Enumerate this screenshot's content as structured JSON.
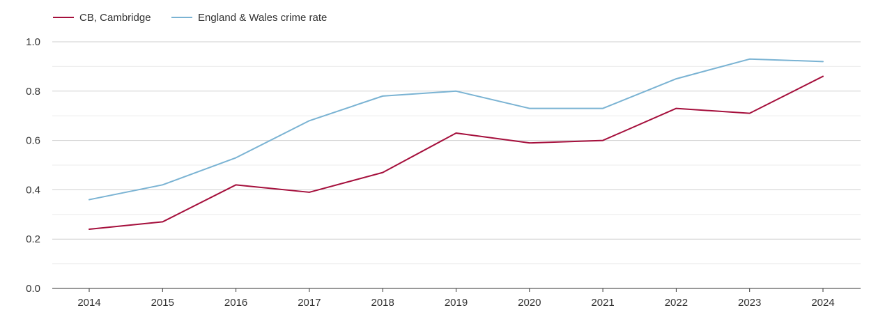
{
  "chart_data": {
    "type": "line",
    "title": "",
    "xlabel": "",
    "ylabel": "",
    "categories": [
      "2014",
      "2015",
      "2016",
      "2017",
      "2018",
      "2019",
      "2020",
      "2021",
      "2022",
      "2023",
      "2024"
    ],
    "ylim": [
      0,
      1.0
    ],
    "y_ticks": [
      "0.0",
      "0.2",
      "0.4",
      "0.6",
      "0.8",
      "1.0"
    ],
    "grid": true,
    "legend_position": "top-left",
    "series": [
      {
        "name": "CB, Cambridge",
        "color": "#a50f3c",
        "values": [
          0.24,
          0.27,
          0.42,
          0.39,
          0.47,
          0.63,
          0.59,
          0.6,
          0.73,
          0.71,
          0.86
        ]
      },
      {
        "name": "England & Wales crime rate",
        "color": "#7ab3d3",
        "values": [
          0.36,
          0.42,
          0.53,
          0.68,
          0.78,
          0.8,
          0.73,
          0.73,
          0.85,
          0.93,
          0.92
        ]
      }
    ]
  }
}
